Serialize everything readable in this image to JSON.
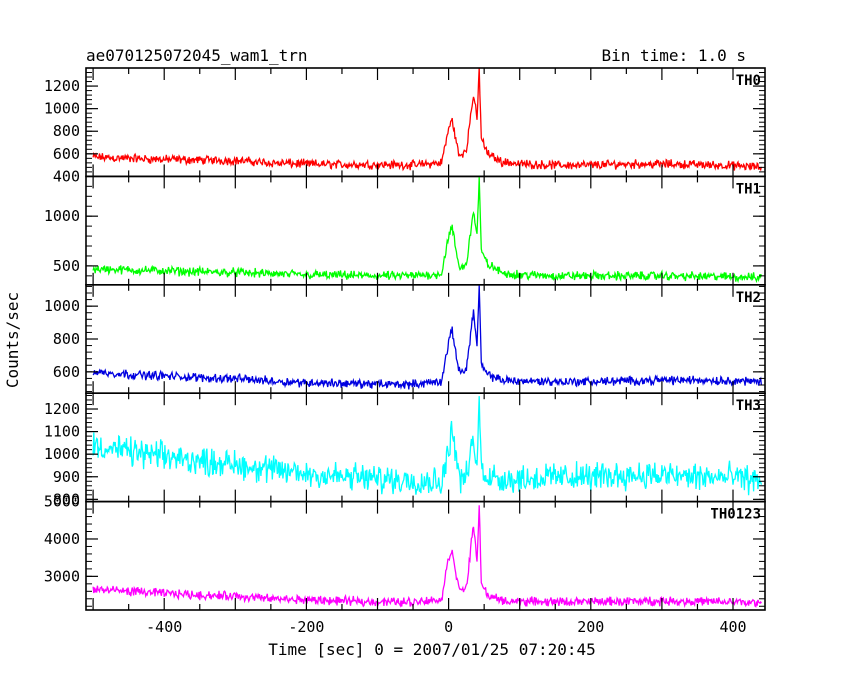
{
  "chart_data": {
    "type": "line",
    "title_left": "ae070125072045_wam1_trn",
    "title_right": "Bin time: 1.0 s",
    "xlabel": "Time [sec] 0 = 2007/01/25 07:20:45",
    "ylabel": "Counts/sec",
    "xlim": [
      -510,
      445
    ],
    "x_ticks": [
      "-400",
      "-200",
      "0",
      "200",
      "400"
    ],
    "x_tick_values": [
      -400,
      -200,
      0,
      200,
      400
    ],
    "series": [
      {
        "name": "TH0",
        "color": "#ff0000",
        "ylim": [
          400,
          1360
        ],
        "yticks": [
          400,
          600,
          800,
          1000,
          1200
        ],
        "x": [
          -500,
          -450,
          -400,
          -350,
          -300,
          -250,
          -200,
          -150,
          -100,
          -50,
          -10,
          0,
          5,
          15,
          25,
          35,
          40,
          43,
          46,
          55,
          75,
          100,
          150,
          200,
          250,
          300,
          350,
          400,
          440
        ],
        "y": [
          570,
          560,
          550,
          545,
          540,
          520,
          510,
          505,
          505,
          500,
          520,
          820,
          900,
          570,
          640,
          1130,
          900,
          1360,
          740,
          600,
          530,
          510,
          500,
          500,
          510,
          510,
          505,
          495,
          480
        ]
      },
      {
        "name": "TH1",
        "color": "#00ff00",
        "ylim": [
          310,
          1400
        ],
        "yticks": [
          500,
          1000
        ],
        "x": [
          -500,
          -450,
          -400,
          -350,
          -300,
          -250,
          -200,
          -150,
          -100,
          -50,
          -10,
          0,
          5,
          15,
          25,
          35,
          40,
          43,
          46,
          55,
          75,
          100,
          150,
          200,
          250,
          300,
          350,
          400,
          440
        ],
        "y": [
          470,
          460,
          450,
          440,
          435,
          420,
          410,
          405,
          400,
          400,
          420,
          800,
          880,
          470,
          520,
          1060,
          800,
          1400,
          640,
          520,
          430,
          410,
          400,
          400,
          400,
          400,
          395,
          390,
          385
        ]
      },
      {
        "name": "TH2",
        "color": "#0000e0",
        "ylim": [
          470,
          1130
        ],
        "yticks": [
          600,
          800,
          1000
        ],
        "x": [
          -500,
          -450,
          -400,
          -350,
          -300,
          -250,
          -200,
          -150,
          -100,
          -50,
          -10,
          0,
          5,
          15,
          25,
          35,
          40,
          43,
          46,
          55,
          75,
          100,
          150,
          200,
          250,
          300,
          350,
          400,
          440
        ],
        "y": [
          600,
          585,
          575,
          565,
          560,
          545,
          535,
          530,
          525,
          525,
          540,
          780,
          850,
          600,
          620,
          970,
          760,
          1130,
          640,
          580,
          550,
          545,
          540,
          540,
          545,
          550,
          550,
          545,
          540
        ]
      },
      {
        "name": "TH3",
        "color": "#00ffff",
        "ylim": [
          790,
          1270
        ],
        "yticks": [
          800,
          900,
          1000,
          1100,
          1200
        ],
        "x": [
          -500,
          -450,
          -400,
          -350,
          -300,
          -250,
          -200,
          -150,
          -100,
          -50,
          -10,
          0,
          5,
          15,
          25,
          35,
          40,
          43,
          46,
          55,
          75,
          100,
          150,
          200,
          250,
          300,
          350,
          400,
          440
        ],
        "y": [
          1040,
          1010,
          990,
          970,
          955,
          930,
          915,
          900,
          890,
          885,
          880,
          1010,
          1130,
          890,
          900,
          1060,
          930,
          1270,
          920,
          910,
          890,
          890,
          900,
          900,
          910,
          905,
          900,
          895,
          885
        ]
      },
      {
        "name": "TH0123",
        "color": "#ff00ff",
        "ylim": [
          2100,
          5000
        ],
        "yticks": [
          3000,
          4000,
          5000
        ],
        "x": [
          -500,
          -450,
          -400,
          -350,
          -300,
          -250,
          -200,
          -150,
          -100,
          -50,
          -10,
          0,
          5,
          15,
          25,
          35,
          40,
          43,
          46,
          55,
          75,
          100,
          150,
          200,
          250,
          300,
          350,
          400,
          440
        ],
        "y": [
          2650,
          2600,
          2550,
          2500,
          2470,
          2400,
          2370,
          2340,
          2320,
          2320,
          2380,
          3500,
          3700,
          2600,
          2700,
          4400,
          3300,
          5000,
          2800,
          2500,
          2350,
          2330,
          2320,
          2320,
          2330,
          2340,
          2330,
          2310,
          2290
        ]
      }
    ]
  }
}
